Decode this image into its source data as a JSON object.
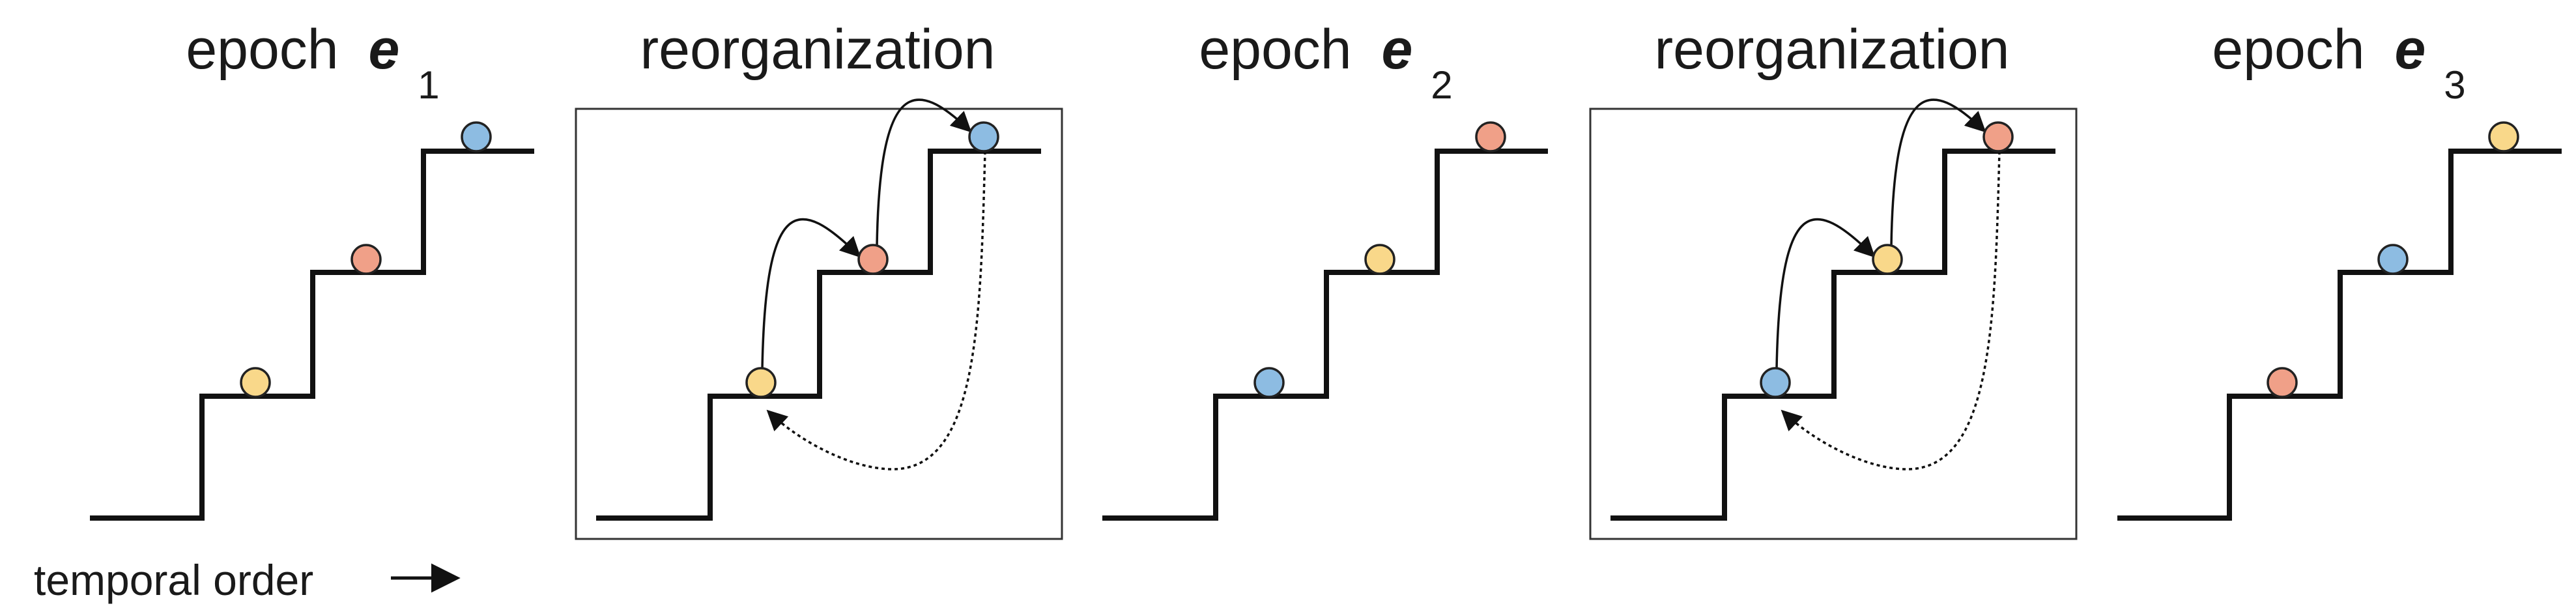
{
  "panels": [
    {
      "id": "epoch-1",
      "title_word": "epoch",
      "title_symbol": "e",
      "title_subscript": "1",
      "boxed": false,
      "balls": [
        "yellow",
        "orange",
        "blue"
      ]
    },
    {
      "id": "reorganization-1",
      "title_word": "reorganization",
      "boxed": true,
      "balls": [
        "yellow",
        "orange",
        "blue"
      ]
    },
    {
      "id": "epoch-2",
      "title_word": "epoch",
      "title_symbol": "e",
      "title_subscript": "2",
      "boxed": false,
      "balls": [
        "blue",
        "yellow",
        "orange"
      ]
    },
    {
      "id": "reorganization-2",
      "title_word": "reorganization",
      "boxed": true,
      "balls": [
        "blue",
        "yellow",
        "orange"
      ]
    },
    {
      "id": "epoch-3",
      "title_word": "epoch",
      "title_symbol": "e",
      "title_subscript": "3",
      "boxed": false,
      "balls": [
        "orange",
        "blue",
        "yellow"
      ]
    }
  ],
  "ball_colors": {
    "yellow": "#F9D88A",
    "orange": "#F0A088",
    "blue": "#8DBCE2"
  },
  "axis_label": "temporal order",
  "arrow_glyph": "⟶"
}
